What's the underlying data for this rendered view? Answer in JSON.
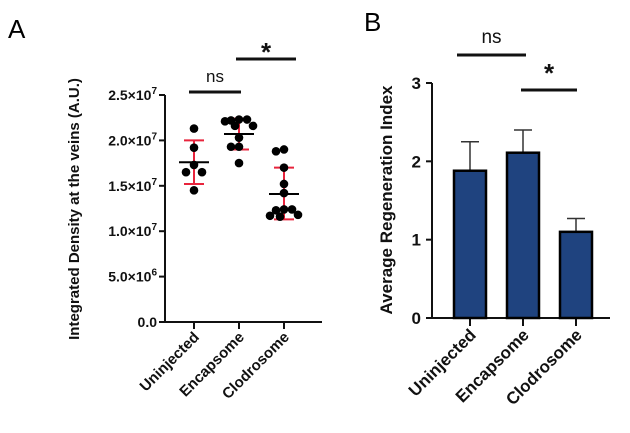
{
  "chart_data": [
    {
      "panel": "A",
      "type": "scatter",
      "ylabel": "Integrated Density at the veins (A.U.)",
      "xlabel": "",
      "categories": [
        "Uninjected",
        "Encapsome",
        "Clodrosome"
      ],
      "ylim": [
        0,
        25000000
      ],
      "yticks": [
        {
          "value": 0,
          "label": "0.0"
        },
        {
          "value": 5000000,
          "label": "5.0×10",
          "exp": "6"
        },
        {
          "value": 10000000,
          "label": "1.0×10",
          "exp": "7"
        },
        {
          "value": 15000000,
          "label": "1.5×10",
          "exp": "7"
        },
        {
          "value": 20000000,
          "label": "2.0×10",
          "exp": "7"
        },
        {
          "value": 25000000,
          "label": "2.5×10",
          "exp": "7"
        }
      ],
      "series": [
        {
          "name": "Uninjected",
          "points": [
            21300000,
            19200000,
            17300000,
            16500000,
            16500000,
            14500000
          ],
          "mean": 17600000,
          "sd_low": 15200000,
          "sd_high": 20000000
        },
        {
          "name": "Encapsome",
          "points": [
            22300000,
            22200000,
            22300000,
            22100000,
            21600000,
            21600000,
            20300000,
            19300000,
            19300000,
            17500000
          ],
          "mean": 20700000,
          "sd_low": 19000000,
          "sd_high": 22400000
        },
        {
          "name": "Clodrosome",
          "points": [
            19000000,
            18800000,
            17000000,
            15200000,
            14200000,
            12400000,
            12300000,
            12400000,
            11700000,
            11800000,
            11600000
          ],
          "mean": 14100000,
          "sd_low": 11300000,
          "sd_high": 17000000
        }
      ],
      "colors": {
        "points": "#000000",
        "mean_line": "#000000",
        "error_bar": "#e8243c"
      },
      "annotations": [
        {
          "text": "ns",
          "from": "Uninjected",
          "to": "Encapsome",
          "kind": "ns"
        },
        {
          "text": "*",
          "from": "Encapsome",
          "to": "Clodrosome",
          "kind": "star"
        }
      ],
      "grid": false
    },
    {
      "panel": "B",
      "type": "bar",
      "ylabel": "Average Regeneration Index",
      "xlabel": "",
      "categories": [
        "Uninjected",
        "Encapsome",
        "Clodrosome"
      ],
      "values": [
        1.88,
        2.11,
        1.1
      ],
      "error_high": [
        2.25,
        2.4,
        1.27
      ],
      "ylim": [
        0,
        3
      ],
      "yticks": [
        {
          "value": 0,
          "label": "0"
        },
        {
          "value": 1,
          "label": "1"
        },
        {
          "value": 2,
          "label": "2"
        },
        {
          "value": 3,
          "label": "3"
        }
      ],
      "colors": {
        "bar_fill": "#1f437f",
        "bar_edge": "#000000",
        "error_bar": "#333333"
      },
      "annotations": [
        {
          "text": "ns",
          "from": "Uninjected",
          "to": "Encapsome",
          "kind": "ns"
        },
        {
          "text": "*",
          "from": "Encapsome",
          "to": "Clodrosome",
          "kind": "star"
        }
      ],
      "grid": false
    }
  ]
}
